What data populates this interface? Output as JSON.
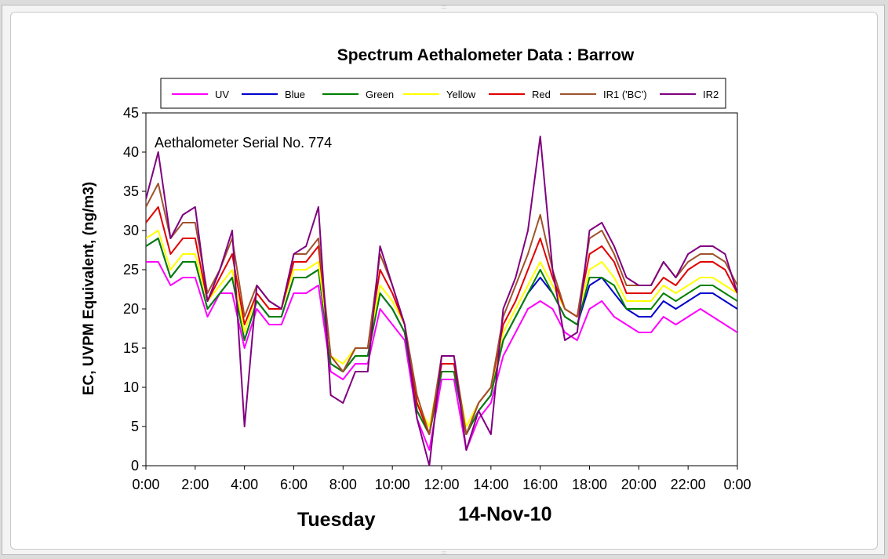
{
  "chart_data": {
    "type": "line",
    "title": "Spectrum Aethalometer Data  :  Barrow",
    "annotation": "Aethalometer  Serial No. 774",
    "ylabel": "EC, UVPM Equivalent, (ng/m3)",
    "day_label": "Tuesday",
    "date_label": "14-Nov-10",
    "ylim": [
      0,
      45
    ],
    "yticks": [
      "0",
      "5",
      "10",
      "15",
      "20",
      "25",
      "30",
      "35",
      "40",
      "45"
    ],
    "xlim": [
      0,
      24
    ],
    "xticks": [
      "0:00",
      "2:00",
      "4:00",
      "6:00",
      "8:00",
      "10:00",
      "12:00",
      "14:00",
      "16:00",
      "18:00",
      "20:00",
      "22:00",
      "0:00"
    ],
    "legend_position": "top",
    "x_hours": [
      0,
      0.5,
      1,
      1.5,
      2,
      2.5,
      3,
      3.5,
      4,
      4.5,
      5,
      5.5,
      6,
      6.5,
      7,
      7.5,
      8,
      8.5,
      9,
      9.5,
      10,
      10.5,
      11,
      11.5,
      12,
      12.5,
      13,
      13.5,
      14,
      14.5,
      15,
      15.5,
      16,
      16.5,
      17,
      17.5,
      18,
      18.5,
      19,
      19.5,
      20,
      20.5,
      21,
      21.5,
      22,
      22.5,
      23,
      23.5,
      24
    ],
    "series": [
      {
        "name": "UV",
        "color": "#ff00ff",
        "values": [
          26,
          26,
          23,
          24,
          24,
          19,
          22,
          22,
          15,
          20,
          18,
          18,
          22,
          22,
          23,
          12,
          11,
          13,
          13,
          20,
          18,
          16,
          6,
          2,
          11,
          11,
          2,
          6,
          8,
          14,
          17,
          20,
          21,
          20,
          17,
          16,
          20,
          21,
          19,
          18,
          17,
          17,
          19,
          18,
          19,
          20,
          19,
          18,
          17
        ]
      },
      {
        "name": "Blue",
        "color": "#0000cc",
        "values": [
          28,
          29,
          24,
          26,
          26,
          20,
          22,
          24,
          16,
          21,
          19,
          19,
          24,
          24,
          25,
          13,
          12,
          14,
          14,
          22,
          20,
          17,
          7,
          4,
          12,
          12,
          4,
          7,
          9,
          16,
          19,
          22,
          24,
          22,
          19,
          18,
          23,
          24,
          22,
          20,
          19,
          19,
          21,
          20,
          21,
          22,
          22,
          21,
          20
        ]
      },
      {
        "name": "Green",
        "color": "#008000",
        "values": [
          28,
          29,
          24,
          26,
          26,
          20,
          22,
          24,
          16,
          21,
          19,
          19,
          24,
          24,
          25,
          13,
          12,
          14,
          14,
          22,
          20,
          17,
          7,
          4,
          12,
          12,
          4,
          7,
          9,
          16,
          19,
          22,
          25,
          22,
          19,
          18,
          24,
          24,
          23,
          20,
          20,
          20,
          22,
          21,
          22,
          23,
          23,
          22,
          21
        ]
      },
      {
        "name": "Yellow",
        "color": "#ffff00",
        "values": [
          29,
          30,
          25,
          27,
          27,
          21,
          23,
          25,
          17,
          22,
          20,
          20,
          25,
          25,
          26,
          14,
          13,
          15,
          15,
          23,
          21,
          18,
          8,
          5,
          13,
          13,
          5,
          8,
          10,
          17,
          20,
          23,
          26,
          23,
          20,
          19,
          25,
          26,
          24,
          21,
          21,
          21,
          23,
          22,
          23,
          24,
          24,
          23,
          22
        ]
      },
      {
        "name": "Red",
        "color": "#e00000",
        "values": [
          31,
          33,
          27,
          29,
          29,
          21,
          24,
          27,
          18,
          22,
          20,
          20,
          26,
          26,
          28,
          14,
          12,
          15,
          15,
          25,
          22,
          18,
          8,
          4,
          13,
          13,
          4,
          8,
          10,
          18,
          21,
          25,
          29,
          24,
          20,
          19,
          27,
          28,
          26,
          22,
          22,
          22,
          24,
          23,
          25,
          26,
          26,
          25,
          22
        ]
      },
      {
        "name": "IR1 ('BC')",
        "color": "#a0522d",
        "values": [
          33,
          36,
          29,
          31,
          31,
          22,
          25,
          29,
          19,
          23,
          21,
          20,
          27,
          27,
          29,
          14,
          12,
          15,
          15,
          27,
          23,
          18,
          9,
          4,
          14,
          14,
          4,
          8,
          10,
          19,
          23,
          27,
          32,
          25,
          20,
          19,
          29,
          30,
          27,
          23,
          23,
          23,
          26,
          24,
          26,
          27,
          27,
          26,
          23
        ]
      },
      {
        "name": "IR2",
        "color": "#800080",
        "values": [
          34,
          40,
          29,
          32,
          33,
          21,
          25,
          30,
          5,
          23,
          21,
          20,
          27,
          28,
          33,
          9,
          8,
          12,
          12,
          28,
          23,
          18,
          6,
          0,
          14,
          14,
          2,
          7,
          4,
          20,
          24,
          30,
          42,
          25,
          16,
          17,
          30,
          31,
          28,
          24,
          23,
          23,
          26,
          24,
          27,
          28,
          28,
          27,
          22
        ]
      }
    ]
  }
}
